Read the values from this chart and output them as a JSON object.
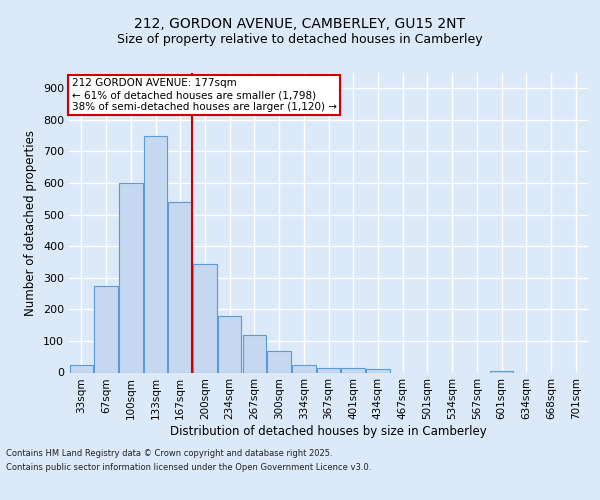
{
  "title1": "212, GORDON AVENUE, CAMBERLEY, GU15 2NT",
  "title2": "Size of property relative to detached houses in Camberley",
  "xlabel": "Distribution of detached houses by size in Camberley",
  "ylabel": "Number of detached properties",
  "categories": [
    "33sqm",
    "67sqm",
    "100sqm",
    "133sqm",
    "167sqm",
    "200sqm",
    "234sqm",
    "267sqm",
    "300sqm",
    "334sqm",
    "367sqm",
    "401sqm",
    "434sqm",
    "467sqm",
    "501sqm",
    "534sqm",
    "567sqm",
    "601sqm",
    "634sqm",
    "668sqm",
    "701sqm"
  ],
  "values": [
    25,
    275,
    600,
    750,
    540,
    345,
    180,
    120,
    68,
    25,
    15,
    15,
    12,
    0,
    0,
    0,
    0,
    5,
    0,
    0,
    0
  ],
  "bar_color": "#c5d8f0",
  "bar_edge_color": "#5b9bd5",
  "vline_color": "#cc0000",
  "vline_x_index": 4.47,
  "annotation_text": "212 GORDON AVENUE: 177sqm\n← 61% of detached houses are smaller (1,798)\n38% of semi-detached houses are larger (1,120) →",
  "annotation_box_edge": "#cc0000",
  "ylim": [
    0,
    950
  ],
  "yticks": [
    0,
    100,
    200,
    300,
    400,
    500,
    600,
    700,
    800,
    900
  ],
  "background_color": "#dce9f8",
  "grid_color": "#ffffff",
  "footer_line1": "Contains HM Land Registry data © Crown copyright and database right 2025.",
  "footer_line2": "Contains public sector information licensed under the Open Government Licence v3.0."
}
